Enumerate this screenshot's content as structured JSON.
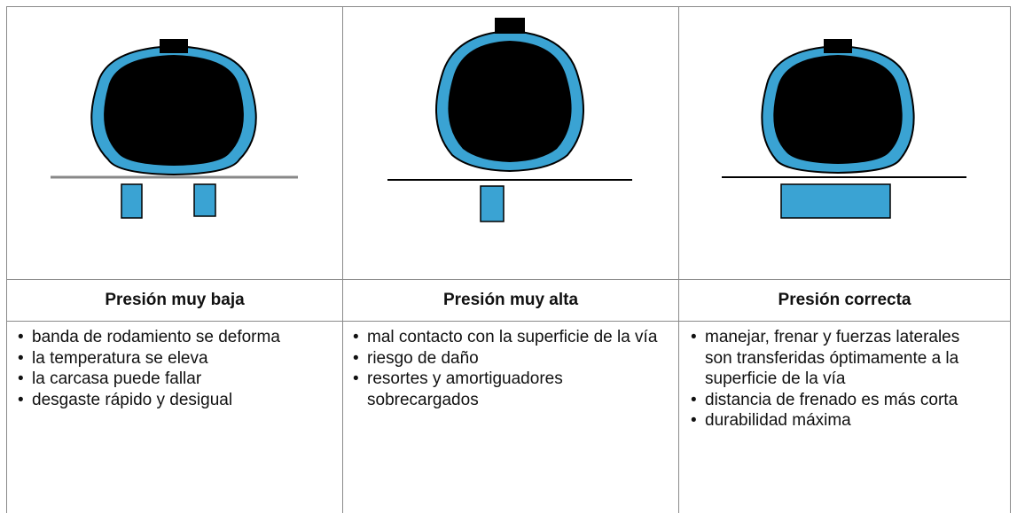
{
  "columns": [
    {
      "title": "Presión muy baja",
      "points": [
        "banda de rodamiento se deforma",
        "la temperatura se eleva",
        "la carcasa puede fallar",
        "desgaste rápido y desigual"
      ]
    },
    {
      "title": "Presión muy alta",
      "points": [
        "mal contacto con la superficie de la vía",
        "riesgo de daño",
        "resortes y amortiguadores sobrecargados"
      ]
    },
    {
      "title": "Presión correcta",
      "points": [
        "manejar, frenar y fuerzas laterales son transferidas óptimamente a la superficie de la vía",
        "distancia de frenado es más corta",
        "durabilidad máxima"
      ]
    }
  ]
}
